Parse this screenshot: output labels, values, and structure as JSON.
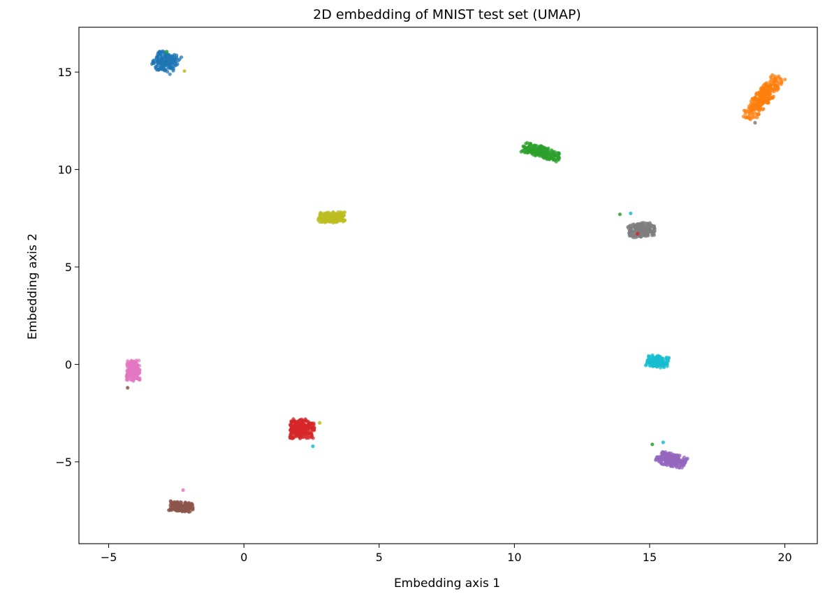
{
  "chart_data": {
    "type": "scatter",
    "title": "2D embedding of MNIST test set (UMAP)",
    "xlabel": "Embedding axis 1",
    "ylabel": "Embedding axis 2",
    "xlim": [
      -6.1,
      21.2
    ],
    "ylim": [
      -9.2,
      17.3
    ],
    "xticks": [
      -5,
      0,
      5,
      10,
      15,
      20
    ],
    "xtick_labels": [
      "−5",
      "0",
      "5",
      "10",
      "15",
      "20"
    ],
    "yticks": [
      -5,
      0,
      5,
      10,
      15
    ],
    "ytick_labels": [
      "−5",
      "0",
      "5",
      "10",
      "15"
    ],
    "grid": false,
    "legend": "none",
    "series": [
      {
        "color": "#1f77b4",
        "center": [
          -2.9,
          15.5
        ],
        "spread": [
          0.45,
          0.5
        ],
        "angle": -25,
        "count": 170
      },
      {
        "color": "#ff7f0e",
        "center": [
          19.2,
          13.7
        ],
        "spread": [
          1.25,
          0.32
        ],
        "angle": 60,
        "count": 260
      },
      {
        "color": "#2ca02c",
        "center": [
          11.0,
          10.9
        ],
        "spread": [
          0.75,
          0.28
        ],
        "angle": -22,
        "count": 220
      },
      {
        "color": "#d62728",
        "center": [
          2.15,
          -3.3
        ],
        "spread": [
          0.45,
          0.5
        ],
        "angle": 0,
        "count": 240
      },
      {
        "color": "#9467bd",
        "center": [
          15.8,
          -4.9
        ],
        "spread": [
          0.55,
          0.32
        ],
        "angle": -18,
        "count": 220
      },
      {
        "color": "#8c564b",
        "center": [
          -2.3,
          -7.3
        ],
        "spread": [
          0.45,
          0.25
        ],
        "angle": -8,
        "count": 170
      },
      {
        "color": "#e377c2",
        "center": [
          -4.1,
          -0.3
        ],
        "spread": [
          0.25,
          0.55
        ],
        "angle": 0,
        "count": 170
      },
      {
        "color": "#7f7f7f",
        "center": [
          14.7,
          6.9
        ],
        "spread": [
          0.5,
          0.35
        ],
        "angle": 10,
        "count": 210
      },
      {
        "color": "#bcbd22",
        "center": [
          3.25,
          7.55
        ],
        "spread": [
          0.5,
          0.28
        ],
        "angle": 0,
        "count": 200
      },
      {
        "color": "#17becf",
        "center": [
          15.3,
          0.15
        ],
        "spread": [
          0.4,
          0.3
        ],
        "angle": -10,
        "count": 150
      }
    ],
    "outliers": [
      {
        "x": -2.2,
        "y": 15.05,
        "color": "#bcbd22"
      },
      {
        "x": -2.85,
        "y": 16.05,
        "color": "#2ca02c"
      },
      {
        "x": 2.8,
        "y": -3.0,
        "color": "#bcbd22"
      },
      {
        "x": 2.55,
        "y": -4.2,
        "color": "#17becf"
      },
      {
        "x": 14.3,
        "y": 7.75,
        "color": "#17becf"
      },
      {
        "x": 13.9,
        "y": 7.7,
        "color": "#2ca02c"
      },
      {
        "x": 14.55,
        "y": 6.7,
        "color": "#d62728"
      },
      {
        "x": 15.1,
        "y": -4.1,
        "color": "#2ca02c"
      },
      {
        "x": 15.5,
        "y": -4.0,
        "color": "#17becf"
      },
      {
        "x": -4.3,
        "y": -1.2,
        "color": "#8c564b"
      },
      {
        "x": -2.25,
        "y": -6.45,
        "color": "#e377c2"
      },
      {
        "x": 18.9,
        "y": 12.4,
        "color": "#7f7f7f"
      }
    ]
  }
}
